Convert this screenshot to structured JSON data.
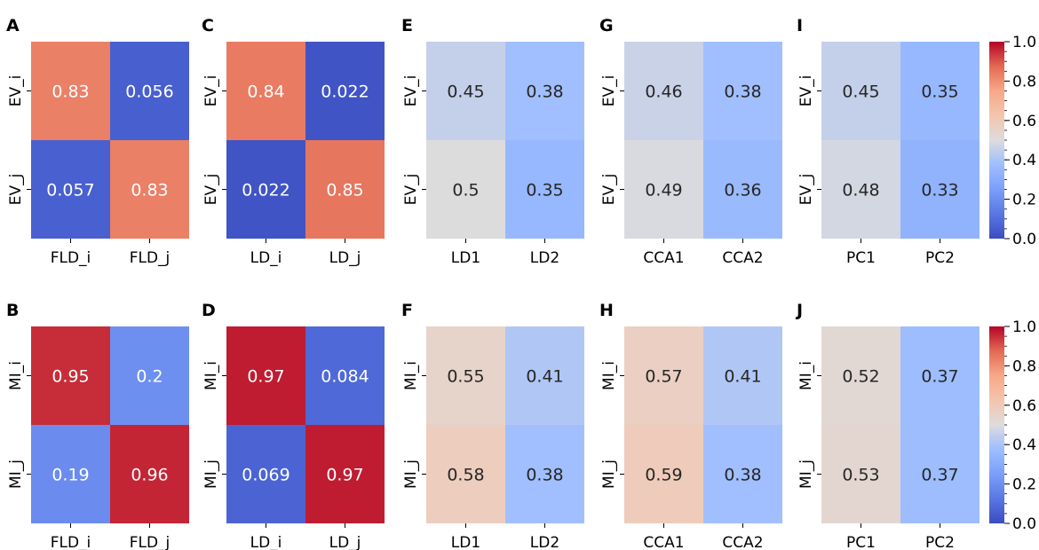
{
  "chart_data": [
    {
      "panel": "A",
      "type": "heatmap",
      "row_labels": [
        "EV_i",
        "EV_j"
      ],
      "col_labels": [
        "FLD_i",
        "FLD_j"
      ],
      "values": [
        [
          0.83,
          0.056
        ],
        [
          0.057,
          0.83
        ]
      ],
      "labels": [
        [
          "0.83",
          "0.056"
        ],
        [
          "0.057",
          "0.83"
        ]
      ],
      "vmin": 0,
      "vmax": 1,
      "colormap": "coolwarm"
    },
    {
      "panel": "C",
      "type": "heatmap",
      "row_labels": [
        "EV_i",
        "EV_j"
      ],
      "col_labels": [
        "LD_i",
        "LD_j"
      ],
      "values": [
        [
          0.84,
          0.022
        ],
        [
          0.022,
          0.85
        ]
      ],
      "labels": [
        [
          "0.84",
          "0.022"
        ],
        [
          "0.022",
          "0.85"
        ]
      ],
      "vmin": 0,
      "vmax": 1,
      "colormap": "coolwarm"
    },
    {
      "panel": "E",
      "type": "heatmap",
      "row_labels": [
        "EV_i",
        "EV_j"
      ],
      "col_labels": [
        "LD1",
        "LD2"
      ],
      "values": [
        [
          0.45,
          0.38
        ],
        [
          0.5,
          0.35
        ]
      ],
      "labels": [
        [
          "0.45",
          "0.38"
        ],
        [
          "0.5",
          "0.35"
        ]
      ],
      "vmin": 0,
      "vmax": 1,
      "colormap": "coolwarm"
    },
    {
      "panel": "G",
      "type": "heatmap",
      "row_labels": [
        "EV_i",
        "EV_j"
      ],
      "col_labels": [
        "CCA1",
        "CCA2"
      ],
      "values": [
        [
          0.46,
          0.38
        ],
        [
          0.49,
          0.36
        ]
      ],
      "labels": [
        [
          "0.46",
          "0.38"
        ],
        [
          "0.49",
          "0.36"
        ]
      ],
      "vmin": 0,
      "vmax": 1,
      "colormap": "coolwarm"
    },
    {
      "panel": "I",
      "type": "heatmap",
      "row_labels": [
        "EV_i",
        "EV_j"
      ],
      "col_labels": [
        "PC1",
        "PC2"
      ],
      "values": [
        [
          0.45,
          0.35
        ],
        [
          0.48,
          0.33
        ]
      ],
      "labels": [
        [
          "0.45",
          "0.35"
        ],
        [
          "0.48",
          "0.33"
        ]
      ],
      "vmin": 0,
      "vmax": 1,
      "colormap": "coolwarm"
    },
    {
      "panel": "B",
      "type": "heatmap",
      "row_labels": [
        "MI_i",
        "MI_j"
      ],
      "col_labels": [
        "FLD_i",
        "FLD_j"
      ],
      "values": [
        [
          0.95,
          0.2
        ],
        [
          0.19,
          0.96
        ]
      ],
      "labels": [
        [
          "0.95",
          "0.2"
        ],
        [
          "0.19",
          "0.96"
        ]
      ],
      "vmin": 0,
      "vmax": 1,
      "colormap": "coolwarm"
    },
    {
      "panel": "D",
      "type": "heatmap",
      "row_labels": [
        "MI_i",
        "MI_j"
      ],
      "col_labels": [
        "LD_i",
        "LD_j"
      ],
      "values": [
        [
          0.97,
          0.084
        ],
        [
          0.069,
          0.97
        ]
      ],
      "labels": [
        [
          "0.97",
          "0.084"
        ],
        [
          "0.069",
          "0.97"
        ]
      ],
      "vmin": 0,
      "vmax": 1,
      "colormap": "coolwarm"
    },
    {
      "panel": "F",
      "type": "heatmap",
      "row_labels": [
        "MI_i",
        "MI_j"
      ],
      "col_labels": [
        "LD1",
        "LD2"
      ],
      "values": [
        [
          0.55,
          0.41
        ],
        [
          0.58,
          0.38
        ]
      ],
      "labels": [
        [
          "0.55",
          "0.41"
        ],
        [
          "0.58",
          "0.38"
        ]
      ],
      "vmin": 0,
      "vmax": 1,
      "colormap": "coolwarm"
    },
    {
      "panel": "H",
      "type": "heatmap",
      "row_labels": [
        "MI_i",
        "MI_j"
      ],
      "col_labels": [
        "CCA1",
        "CCA2"
      ],
      "values": [
        [
          0.57,
          0.41
        ],
        [
          0.59,
          0.38
        ]
      ],
      "labels": [
        [
          "0.57",
          "0.41"
        ],
        [
          "0.59",
          "0.38"
        ]
      ],
      "vmin": 0,
      "vmax": 1,
      "colormap": "coolwarm"
    },
    {
      "panel": "J",
      "type": "heatmap",
      "row_labels": [
        "MI_i",
        "MI_j"
      ],
      "col_labels": [
        "PC1",
        "PC2"
      ],
      "values": [
        [
          0.52,
          0.37
        ],
        [
          0.53,
          0.37
        ]
      ],
      "labels": [
        [
          "0.52",
          "0.37"
        ],
        [
          "0.53",
          "0.37"
        ]
      ],
      "vmin": 0,
      "vmax": 1,
      "colormap": "coolwarm"
    }
  ],
  "colorbars": [
    {
      "range": [
        0,
        1
      ],
      "ticks": [
        "0.0",
        "0.2",
        "0.4",
        "0.6",
        "0.8",
        "1.0"
      ]
    },
    {
      "range": [
        0,
        1
      ],
      "ticks": [
        "0.0",
        "0.2",
        "0.4",
        "0.6",
        "0.8",
        "1.0"
      ]
    }
  ]
}
